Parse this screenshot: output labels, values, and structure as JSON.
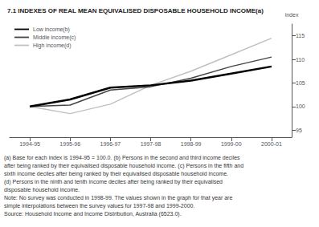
{
  "chart_data": {
    "type": "line",
    "title": "7.1 INDEXES OF REAL MEAN EQUIVALISED DISPOSABLE HOUSEHOLD INCOME(a)",
    "ylabel": "index",
    "categories": [
      "1994-95",
      "1995-96",
      "1996-97",
      "1997-98",
      "1998-99",
      "1999-00",
      "2000-01"
    ],
    "series": [
      {
        "name": "Low income(b)",
        "color": "#000000",
        "values": [
          100.0,
          101.5,
          104.0,
          104.5,
          105.5,
          107.0,
          108.5
        ]
      },
      {
        "name": "Middle income(c)",
        "color": "#444444",
        "values": [
          100.0,
          100.3,
          103.5,
          104.2,
          106.0,
          108.5,
          110.5
        ]
      },
      {
        "name": "High income(d)",
        "color": "#c0c0c0",
        "values": [
          100.0,
          98.5,
          100.5,
          104.5,
          107.5,
          111.0,
          114.5
        ]
      }
    ],
    "ylim": [
      93.5,
      117.5
    ],
    "yticks": [
      95,
      100,
      105,
      110,
      115
    ],
    "grid": false,
    "legend": "upper left",
    "annotations": [
      "(a) Base for each index is 1994-95 = 100.0. (b) Persons in the second and third income deciles",
      "after being ranked by their equivalised disposable household income. (c) Persons in the fifth and",
      "sixth income deciles after being ranked by their equivalised disposable household income.",
      "(d) Persons in the ninth and tenth income deciles after being ranked by their equivalised",
      "disposable household income.",
      "Note: No survey was conducted in 1998-99. The values shown in the graph for that year are",
      "simple interpolations between the survey values for 1997-98 and 1999-2000.",
      "Source: Household Income and Income Distribution, Australia (6523.0)."
    ]
  }
}
